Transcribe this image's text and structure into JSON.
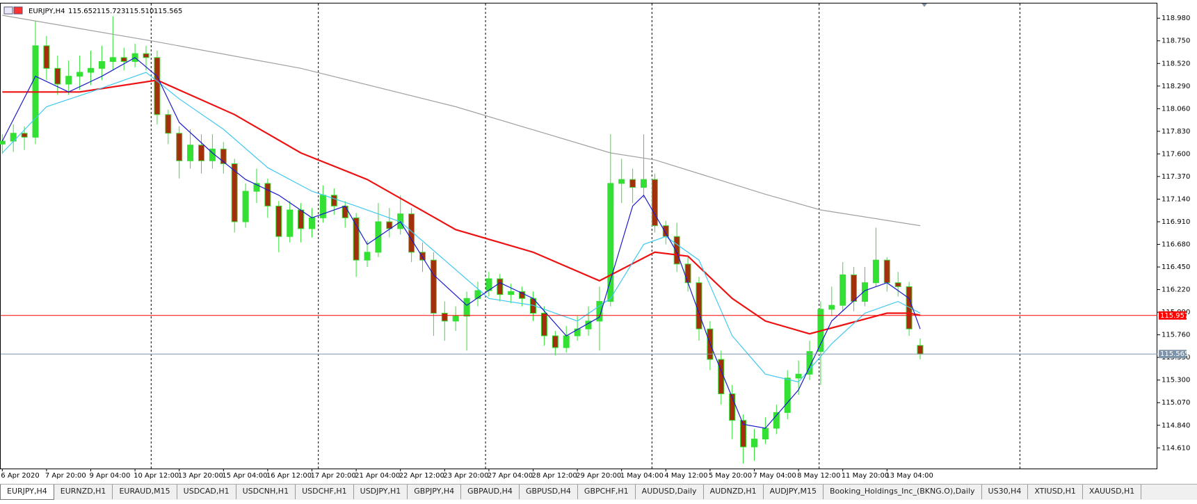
{
  "window": {
    "symbol": "EURJPY,H4",
    "ohlc": [
      "115.652",
      "115.723",
      "115.510",
      "115.565"
    ],
    "tabs": [
      "EURJPY,H4",
      "EURNZD,H1",
      "EURAUD,M15",
      "USDCAD,H1",
      "USDCNH,H1",
      "USDCHF,H1",
      "USDJPY,H1",
      "GBPJPY,H4",
      "GBPAUD,H4",
      "GBPUSD,H4",
      "GBPCHF,H1",
      "AUDUSD,Daily",
      "AUDNZD,H1",
      "AUDJPY,M15",
      "Booking_Holdings_Inc_(BKNG.O),Daily",
      "US30,H4",
      "XTIUSD,H1",
      "XAUUSD,H1"
    ]
  },
  "chart_data": {
    "type": "candlestick",
    "categories": [
      "6 Apr 2020",
      null,
      null,
      null,
      "7 Apr 20:00",
      null,
      null,
      null,
      "9 Apr 04:00",
      null,
      null,
      null,
      "10 Apr 12:00",
      null,
      null,
      null,
      "13 Apr 20:00",
      null,
      null,
      null,
      "15 Apr 04:00",
      null,
      null,
      null,
      "16 Apr 12:00",
      null,
      null,
      null,
      "17 Apr 20:00",
      null,
      null,
      null,
      "21 Apr 04:00",
      null,
      null,
      null,
      "22 Apr 12:00",
      null,
      null,
      null,
      "23 Apr 20:00",
      null,
      null,
      null,
      "27 Apr 04:00",
      null,
      null,
      null,
      "28 Apr 12:00",
      null,
      null,
      null,
      "29 Apr 20:00",
      null,
      null,
      null,
      "1 May 04:00",
      null,
      null,
      null,
      "4 May 12:00",
      null,
      null,
      null,
      "5 May 20:00",
      null,
      null,
      null,
      "7 May 04:00",
      null,
      null,
      null,
      "8 May 12:00",
      null,
      null,
      null,
      "11 May 20:00",
      null,
      null,
      null,
      "13 May 04:00",
      null,
      null,
      null
    ],
    "open": [
      117.7,
      117.73,
      117.81,
      117.77,
      118.7,
      118.47,
      118.31,
      118.39,
      118.43,
      118.47,
      118.54,
      118.58,
      118.54,
      118.62,
      118.58,
      118.0,
      117.81,
      117.53,
      117.69,
      117.53,
      117.65,
      117.5,
      116.91,
      117.22,
      117.3,
      117.07,
      116.76,
      117.03,
      116.84,
      116.95,
      117.18,
      117.07,
      116.95,
      116.52,
      116.6,
      116.91,
      116.84,
      116.99,
      116.6,
      116.52,
      115.98,
      115.9,
      115.95,
      116.13,
      116.21,
      116.33,
      116.17,
      116.2,
      116.13,
      115.98,
      115.75,
      115.63,
      115.75,
      115.82,
      115.9,
      116.1,
      117.3,
      117.34,
      117.26,
      117.34,
      116.87,
      116.76,
      116.48,
      116.29,
      115.82,
      115.51,
      115.16,
      114.89,
      114.62,
      114.7,
      114.81,
      114.97,
      115.32,
      115.36,
      115.59,
      116.02,
      116.06,
      116.37,
      116.1,
      116.29,
      116.52,
      116.29,
      116.25,
      115.652
    ],
    "high": [
      117.8,
      117.9,
      117.88,
      118.95,
      118.8,
      118.6,
      118.55,
      118.6,
      118.65,
      118.7,
      119.0,
      118.68,
      118.72,
      118.7,
      118.65,
      118.05,
      117.88,
      117.85,
      117.8,
      117.8,
      117.72,
      117.55,
      117.3,
      117.45,
      117.35,
      117.12,
      117.12,
      117.1,
      117.05,
      117.28,
      117.25,
      117.12,
      117.0,
      116.72,
      117.1,
      117.05,
      117.18,
      117.05,
      116.7,
      116.6,
      116.1,
      116.05,
      116.2,
      116.3,
      116.4,
      116.38,
      116.28,
      116.25,
      116.2,
      116.05,
      115.8,
      115.85,
      115.95,
      116.05,
      116.25,
      117.8,
      117.55,
      117.45,
      117.8,
      117.4,
      116.92,
      116.9,
      116.55,
      116.35,
      115.9,
      115.6,
      115.25,
      114.95,
      114.8,
      114.92,
      115.05,
      115.4,
      115.5,
      115.7,
      116.1,
      116.25,
      116.5,
      116.45,
      116.45,
      116.85,
      116.55,
      116.4,
      116.3,
      115.723
    ],
    "low": [
      117.6,
      117.62,
      117.64,
      117.7,
      118.35,
      118.2,
      118.2,
      118.25,
      118.3,
      118.35,
      118.45,
      118.45,
      118.48,
      118.45,
      117.9,
      117.7,
      117.35,
      117.45,
      117.4,
      117.45,
      117.4,
      116.8,
      116.85,
      117.1,
      116.95,
      116.6,
      116.7,
      116.7,
      116.75,
      116.9,
      116.98,
      116.85,
      116.35,
      116.45,
      116.55,
      116.75,
      116.78,
      116.5,
      116.4,
      115.75,
      115.7,
      115.8,
      115.6,
      116.05,
      116.15,
      116.1,
      116.08,
      116.05,
      115.9,
      115.65,
      115.55,
      115.58,
      115.7,
      115.75,
      115.6,
      116.05,
      117.1,
      117.1,
      117.15,
      116.8,
      116.68,
      116.4,
      116.2,
      115.7,
      115.4,
      115.05,
      114.7,
      114.45,
      114.48,
      114.65,
      114.75,
      114.9,
      115.15,
      115.3,
      115.25,
      115.95,
      116.0,
      116.0,
      116.05,
      116.25,
      116.2,
      116.15,
      115.75,
      115.51
    ],
    "close": [
      117.73,
      117.81,
      117.77,
      118.7,
      118.47,
      118.31,
      118.39,
      118.43,
      118.47,
      118.54,
      118.58,
      118.54,
      118.62,
      118.58,
      118.0,
      117.81,
      117.53,
      117.69,
      117.53,
      117.65,
      117.5,
      116.91,
      117.22,
      117.3,
      117.07,
      116.76,
      117.03,
      116.84,
      116.95,
      117.18,
      117.07,
      116.95,
      116.52,
      116.6,
      116.91,
      116.84,
      116.99,
      116.6,
      116.52,
      115.98,
      115.9,
      115.95,
      116.13,
      116.21,
      116.33,
      116.17,
      116.2,
      116.13,
      115.98,
      115.75,
      115.63,
      115.75,
      115.82,
      115.9,
      116.1,
      117.3,
      117.34,
      117.26,
      117.34,
      116.87,
      116.76,
      116.48,
      116.29,
      115.82,
      115.51,
      115.16,
      114.89,
      114.62,
      114.7,
      114.81,
      114.97,
      115.32,
      115.36,
      115.59,
      116.02,
      116.06,
      116.37,
      116.1,
      116.29,
      116.52,
      116.29,
      116.25,
      115.82,
      115.565
    ],
    "up_color": "#33e033",
    "down_color": "#a3300c",
    "lines": [
      {
        "color": "#a0a0a0",
        "x": [
          0,
          14,
          27,
          41,
          55,
          59,
          69,
          74,
          83
        ],
        "values": [
          119.01,
          118.74,
          118.47,
          118.08,
          117.61,
          117.54,
          117.19,
          117.03,
          116.87
        ]
      },
      {
        "color": "#ee1111",
        "x": [
          0,
          7,
          14,
          21,
          27,
          33,
          41,
          48,
          54,
          59,
          62,
          66,
          69,
          73,
          76,
          80,
          82,
          83
        ],
        "values": [
          118.23,
          118.23,
          118.35,
          118.0,
          117.61,
          117.34,
          116.83,
          116.6,
          116.31,
          116.6,
          116.56,
          116.13,
          115.9,
          115.77,
          115.86,
          115.98,
          115.98,
          115.96
        ]
      },
      {
        "color": "#40c8f0",
        "x": [
          0,
          4,
          8,
          13,
          16,
          20,
          24,
          28,
          32,
          36,
          40,
          44,
          48,
          52,
          55,
          58,
          60,
          63,
          66,
          69,
          72,
          75,
          78,
          81,
          83
        ],
        "values": [
          117.61,
          118.08,
          118.23,
          118.43,
          118.16,
          117.85,
          117.46,
          117.22,
          117.07,
          116.91,
          116.52,
          116.13,
          116.06,
          115.9,
          116.13,
          116.68,
          116.76,
          116.52,
          115.75,
          115.36,
          115.28,
          115.67,
          115.98,
          116.1,
          115.98
        ]
      },
      {
        "color": "#1a1acc",
        "x": [
          0,
          3,
          6,
          9,
          12,
          14,
          16,
          19,
          22,
          25,
          28,
          31,
          33,
          36,
          39,
          42,
          45,
          48,
          51,
          54,
          57,
          58,
          61,
          64,
          67,
          69,
          72,
          75,
          78,
          80,
          82,
          83
        ],
        "values": [
          117.73,
          118.39,
          118.23,
          118.39,
          118.58,
          118.39,
          117.92,
          117.61,
          117.34,
          117.18,
          116.95,
          117.07,
          116.68,
          116.91,
          116.37,
          116.06,
          116.29,
          116.13,
          115.75,
          115.94,
          117.07,
          117.18,
          116.6,
          115.67,
          114.85,
          114.81,
          115.2,
          115.9,
          116.21,
          116.29,
          116.13,
          115.82
        ]
      }
    ],
    "hlines": [
      {
        "value": 115.957,
        "color": "#ff0000"
      },
      {
        "value": 115.565,
        "color": "#7f93a8"
      }
    ],
    "ylim": [
      114.4,
      119.13
    ],
    "yticks": [
      {
        "value": 118.98,
        "label": "118.980"
      },
      {
        "value": 118.75,
        "label": "118.750"
      },
      {
        "value": 118.52,
        "label": "118.520"
      },
      {
        "value": 118.29,
        "label": "118.290"
      },
      {
        "value": 118.06,
        "label": "118.060"
      },
      {
        "value": 117.83,
        "label": "117.830"
      },
      {
        "value": 117.6,
        "label": "117.600"
      },
      {
        "value": 117.37,
        "label": "117.370"
      },
      {
        "value": 117.14,
        "label": "117.140"
      },
      {
        "value": 116.91,
        "label": "116.910"
      },
      {
        "value": 116.68,
        "label": "116.680"
      },
      {
        "value": 116.45,
        "label": "116.450"
      },
      {
        "value": 116.22,
        "label": "116.220"
      },
      {
        "value": 115.99,
        "label": "115.990"
      },
      {
        "value": 115.76,
        "label": "115.760"
      },
      {
        "value": 115.53,
        "label": "115.530"
      },
      {
        "value": 115.3,
        "label": "115.300"
      },
      {
        "value": 115.07,
        "label": "115.070"
      },
      {
        "value": 114.84,
        "label": "114.840"
      },
      {
        "value": 114.61,
        "label": "114.610"
      }
    ]
  }
}
